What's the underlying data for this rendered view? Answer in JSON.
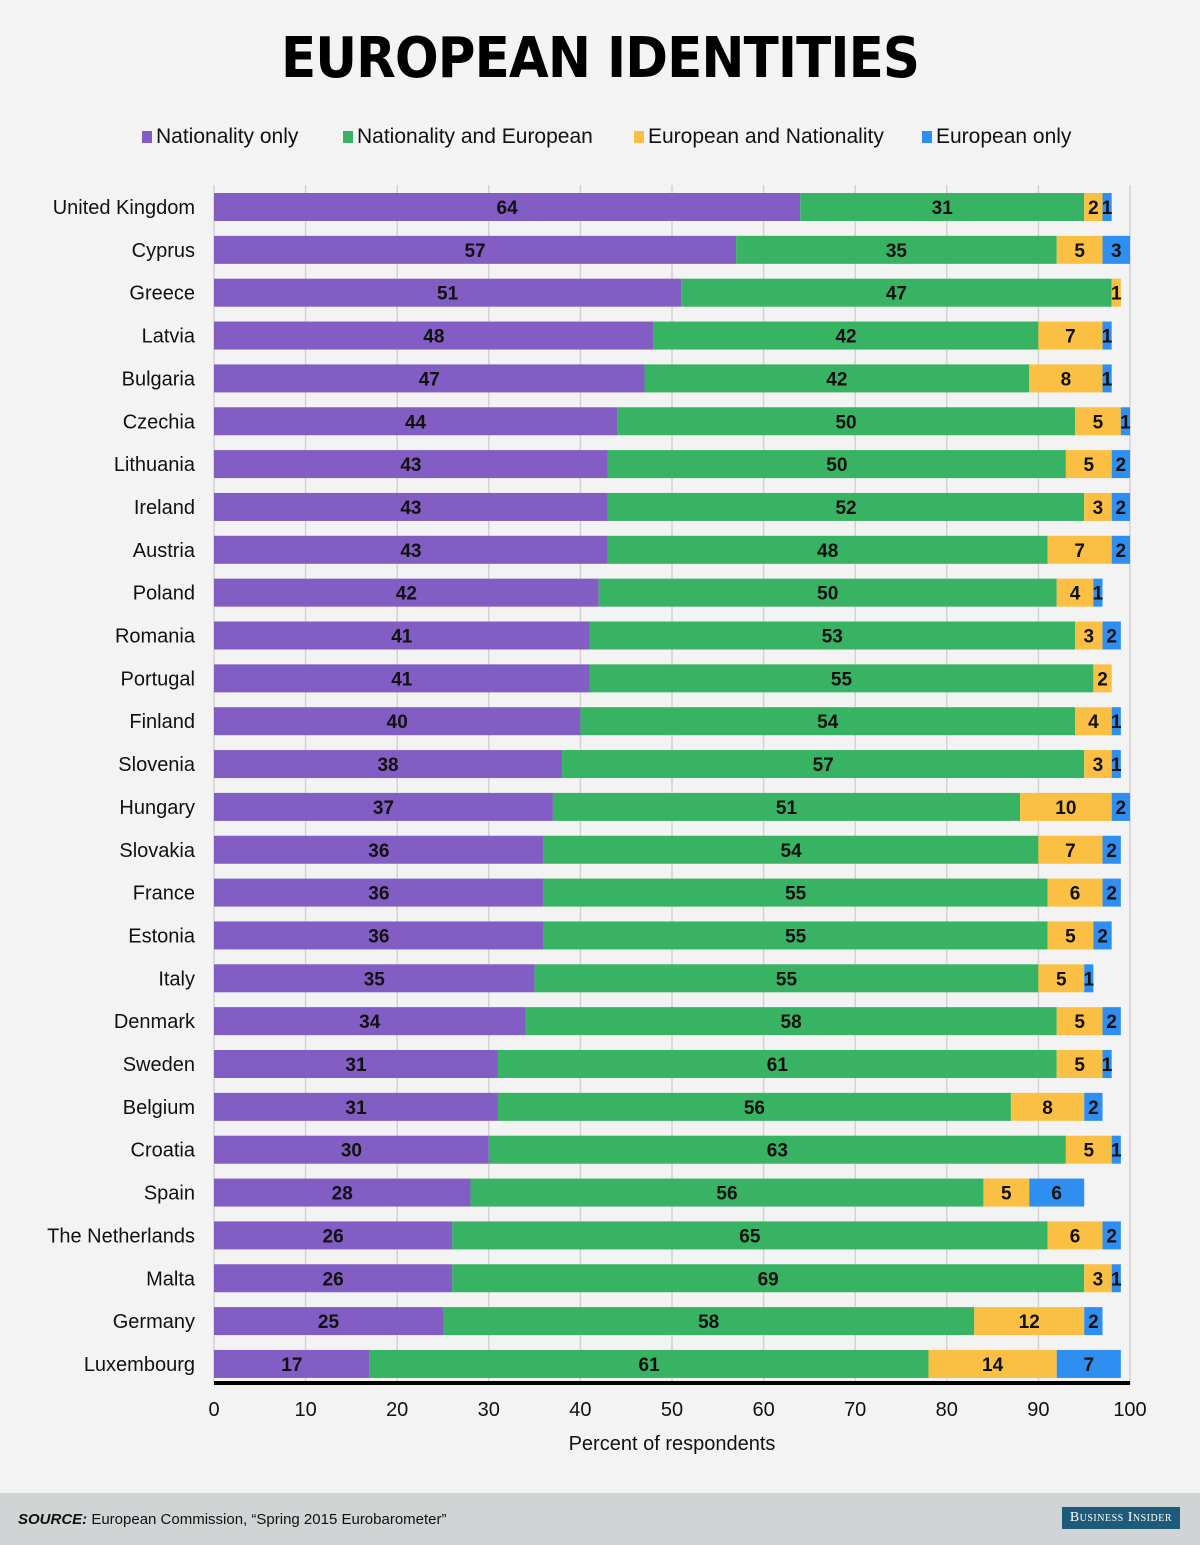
{
  "chart_data": {
    "type": "bar",
    "orientation": "horizontal",
    "stacked": true,
    "title": "EUROPEAN IDENTITIES",
    "xlabel": "Percent of respondents",
    "ylabel": "",
    "xlim": [
      0,
      100
    ],
    "xticks": [
      0,
      10,
      20,
      30,
      40,
      50,
      60,
      70,
      80,
      90,
      100
    ],
    "grid": true,
    "legend_position": "top",
    "categories": [
      "United Kingdom",
      "Cyprus",
      "Greece",
      "Latvia",
      "Bulgaria",
      "Czechia",
      "Lithuania",
      "Ireland",
      "Austria",
      "Poland",
      "Romania",
      "Portugal",
      "Finland",
      "Slovenia",
      "Hungary",
      "Slovakia",
      "France",
      "Estonia",
      "Italy",
      "Denmark",
      "Sweden",
      "Belgium",
      "Croatia",
      "Spain",
      "The Netherlands",
      "Malta",
      "Germany",
      "Luxembourg"
    ],
    "series": [
      {
        "name": "Nationality only",
        "color": "#825ec4",
        "values": [
          64,
          57,
          51,
          48,
          47,
          44,
          43,
          43,
          43,
          42,
          41,
          41,
          40,
          38,
          37,
          36,
          36,
          36,
          35,
          34,
          31,
          31,
          30,
          28,
          26,
          26,
          25,
          17
        ]
      },
      {
        "name": "Nationality and European",
        "color": "#38b263",
        "values": [
          31,
          35,
          47,
          42,
          42,
          50,
          50,
          52,
          48,
          50,
          53,
          55,
          54,
          57,
          51,
          54,
          55,
          55,
          55,
          58,
          61,
          56,
          63,
          56,
          65,
          69,
          58,
          61
        ]
      },
      {
        "name": "European and Nationality",
        "color": "#fbc043",
        "values": [
          2,
          5,
          1,
          7,
          8,
          5,
          5,
          3,
          7,
          4,
          3,
          2,
          4,
          3,
          10,
          7,
          6,
          5,
          5,
          5,
          5,
          8,
          5,
          5,
          6,
          3,
          12,
          14
        ]
      },
      {
        "name": "European only",
        "color": "#2f8ff0",
        "values": [
          1,
          3,
          0,
          1,
          1,
          1,
          2,
          2,
          2,
          1,
          2,
          0,
          1,
          1,
          2,
          2,
          2,
          2,
          1,
          2,
          1,
          2,
          1,
          6,
          2,
          1,
          2,
          7
        ]
      }
    ]
  },
  "footer": {
    "source_label": "SOURCE:",
    "source_text": " European Commission, “Spring 2015 Eurobarometer”",
    "brand": "Business Insider"
  }
}
